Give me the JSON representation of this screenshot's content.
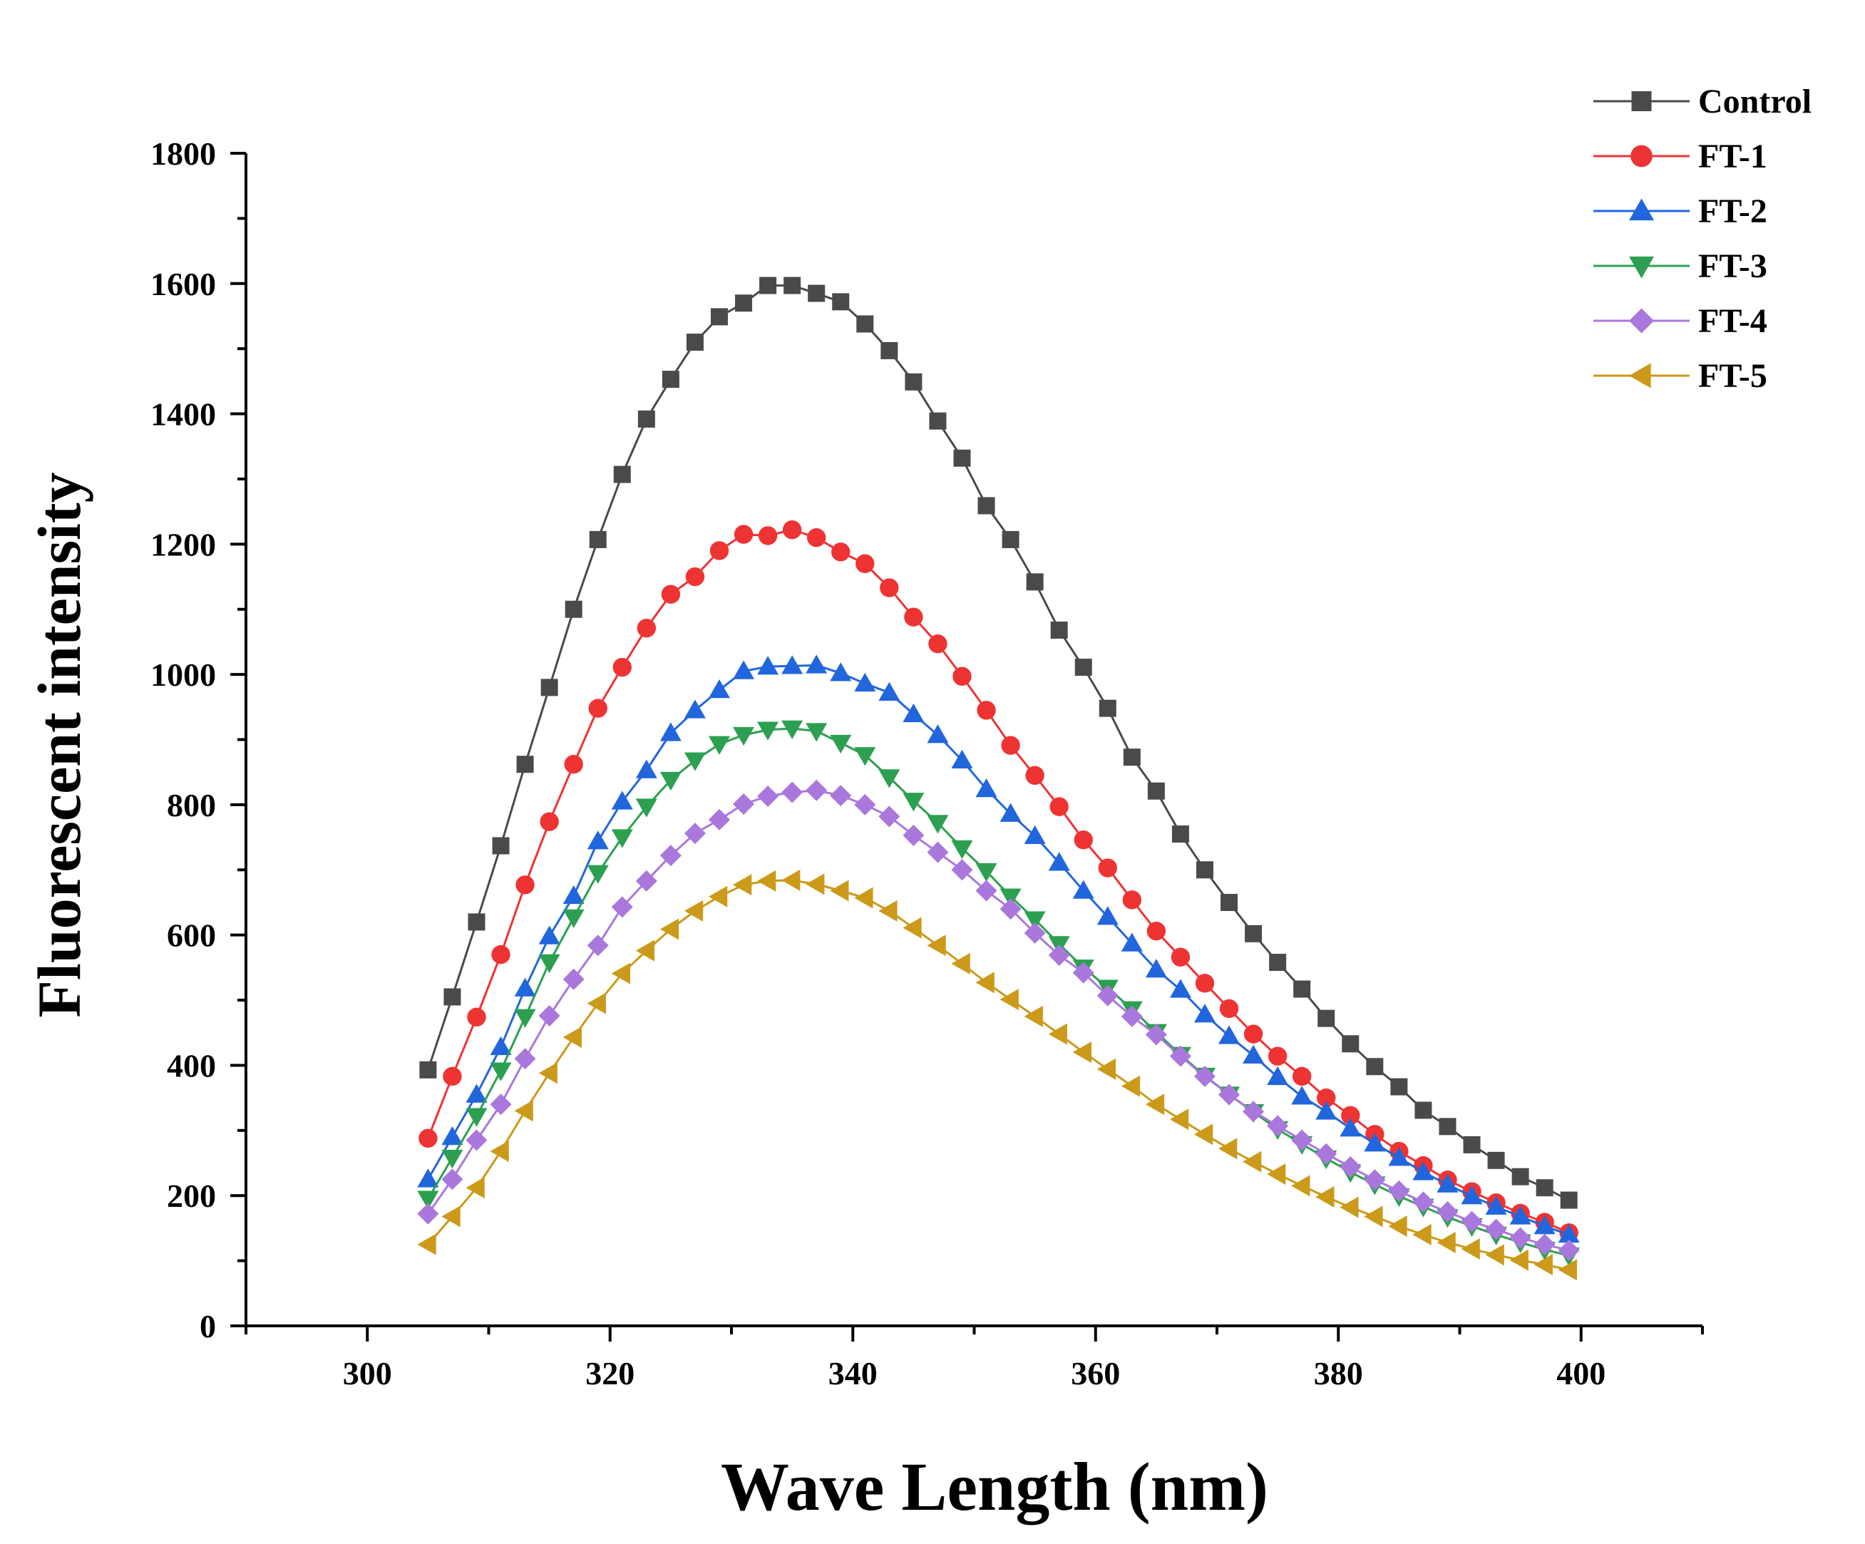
{
  "chart_data": {
    "type": "line",
    "title": "",
    "xlabel": "Wave Length (nm)",
    "ylabel": "Fluorescent  intensity",
    "xlim": [
      290,
      410
    ],
    "ylim": [
      0,
      1800
    ],
    "xticks": [
      300,
      320,
      340,
      360,
      380,
      400
    ],
    "yticks": [
      0,
      200,
      400,
      600,
      800,
      1000,
      1200,
      1400,
      1600,
      1800
    ],
    "grid": false,
    "legend_position": "top-right",
    "x": [
      305,
      307,
      309,
      311,
      313,
      315,
      317,
      319,
      321,
      323,
      325,
      327,
      329,
      331,
      333,
      335,
      337,
      339,
      341,
      343,
      345,
      347,
      349,
      351,
      353,
      355,
      357,
      359,
      361,
      363,
      365,
      367,
      369,
      371,
      373,
      375,
      377,
      379,
      381,
      383,
      385,
      387,
      389,
      391,
      393,
      395,
      397,
      399
    ],
    "series": [
      {
        "name": "Control",
        "marker": "square",
        "color": "#4a4a4a",
        "values": [
          393,
          505,
          620,
          737,
          862,
          980,
          1100,
          1207,
          1307,
          1392,
          1453,
          1510,
          1549,
          1570,
          1597,
          1597,
          1585,
          1572,
          1538,
          1497,
          1449,
          1389,
          1332,
          1259,
          1207,
          1142,
          1068,
          1011,
          948,
          873,
          821,
          755,
          700,
          650,
          602,
          558,
          517,
          472,
          433,
          398,
          367,
          331,
          306,
          278,
          254,
          229,
          212,
          193
        ]
      },
      {
        "name": "FT-1",
        "marker": "circle",
        "color": "#ee3333",
        "values": [
          288,
          383,
          474,
          570,
          677,
          774,
          862,
          948,
          1011,
          1071,
          1123,
          1150,
          1190,
          1215,
          1213,
          1222,
          1210,
          1188,
          1170,
          1133,
          1088,
          1047,
          997,
          945,
          891,
          845,
          797,
          746,
          703,
          654,
          606,
          566,
          526,
          487,
          448,
          414,
          383,
          350,
          323,
          294,
          268,
          246,
          224,
          206,
          189,
          173,
          159,
          143
        ]
      },
      {
        "name": "FT-2",
        "marker": "triangle-up",
        "color": "#2266dd",
        "values": [
          225,
          290,
          355,
          428,
          518,
          598,
          660,
          744,
          805,
          853,
          910,
          945,
          976,
          1005,
          1012,
          1013,
          1014,
          1002,
          986,
          972,
          939,
          907,
          868,
          824,
          786,
          752,
          711,
          668,
          628,
          587,
          547,
          516,
          478,
          445,
          415,
          382,
          352,
          329,
          303,
          280,
          258,
          236,
          217,
          199,
          183,
          168,
          153,
          140
        ]
      },
      {
        "name": "FT-3",
        "marker": "triangle-down",
        "color": "#2ca050",
        "values": [
          195,
          258,
          322,
          392,
          474,
          558,
          627,
          695,
          750,
          797,
          838,
          868,
          893,
          907,
          915,
          917,
          913,
          895,
          876,
          842,
          806,
          772,
          733,
          698,
          659,
          624,
          586,
          550,
          519,
          486,
          451,
          416,
          384,
          355,
          328,
          302,
          279,
          257,
          236,
          217,
          199,
          183,
          167,
          153,
          140,
          128,
          117,
          108
        ]
      },
      {
        "name": "FT-4",
        "marker": "diamond",
        "color": "#aa77dd",
        "values": [
          172,
          225,
          285,
          340,
          410,
          476,
          532,
          584,
          643,
          683,
          722,
          756,
          777,
          801,
          813,
          819,
          822,
          814,
          800,
          782,
          753,
          727,
          700,
          668,
          640,
          603,
          569,
          542,
          507,
          475,
          447,
          414,
          383,
          355,
          329,
          307,
          285,
          264,
          244,
          224,
          207,
          190,
          175,
          160,
          148,
          135,
          125,
          116
        ]
      },
      {
        "name": "FT-5",
        "marker": "triangle-left",
        "color": "#cc9a1a",
        "values": [
          125,
          168,
          212,
          268,
          330,
          388,
          443,
          495,
          541,
          576,
          609,
          637,
          659,
          677,
          683,
          684,
          678,
          668,
          657,
          637,
          611,
          584,
          556,
          527,
          501,
          475,
          448,
          420,
          394,
          368,
          340,
          317,
          294,
          272,
          252,
          233,
          215,
          198,
          182,
          168,
          153,
          140,
          128,
          118,
          109,
          101,
          94,
          86
        ]
      }
    ]
  }
}
